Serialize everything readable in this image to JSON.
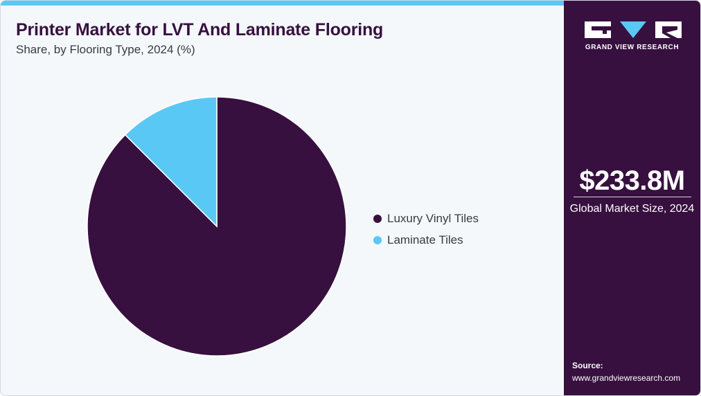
{
  "header": {
    "title": "Printer Market for LVT And Laminate Flooring",
    "subtitle": "Share, by Flooring Type, 2024 (%)"
  },
  "chart_data": {
    "type": "pie",
    "categories": [
      "Luxury Vinyl Tiles",
      "Laminate Tiles"
    ],
    "values": [
      87.5,
      12.5
    ],
    "colors": [
      "#37103f",
      "#5ac8f4"
    ],
    "legend_position": "right"
  },
  "sidebar": {
    "brand": "GRAND VIEW RESEARCH",
    "market_size_value": "$233.8M",
    "market_size_label": "Global Market Size, 2024",
    "source_label": "Source:",
    "source_url": "www.grandviewresearch.com"
  },
  "colors": {
    "brand_purple": "#37103f",
    "accent_blue": "#5ac8f4",
    "background": "#f4f8fb"
  }
}
